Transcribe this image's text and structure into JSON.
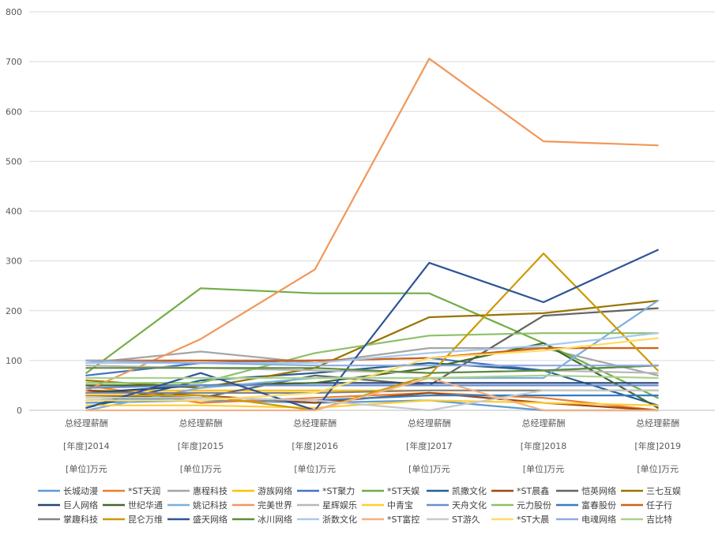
{
  "chart_data": {
    "type": "line",
    "title": "",
    "xlabel": "",
    "ylabel": "",
    "ylim": [
      0,
      800
    ],
    "yticks": [
      0,
      100,
      200,
      300,
      400,
      500,
      600,
      700,
      800
    ],
    "grid": true,
    "legend_position": "bottom",
    "categories": [
      {
        "line1": "总经理薪酬",
        "line2": "[年度]2014",
        "line3": "[单位]万元"
      },
      {
        "line1": "总经理薪酬",
        "line2": "[年度]2015",
        "line3": "[单位]万元"
      },
      {
        "line1": "总经理薪酬",
        "line2": "[年度]2016",
        "line3": "[单位]万元"
      },
      {
        "line1": "总经理薪酬",
        "line2": "[年度]2017",
        "line3": "[单位]万元"
      },
      {
        "line1": "总经理薪酬",
        "line2": "[年度]2018",
        "line3": "[单位]万元"
      },
      {
        "line1": "总经理薪酬",
        "line2": "[年度]2019",
        "line3": "[单位]万元"
      }
    ],
    "series": [
      {
        "name": "长城动漫",
        "color": "#5b9bd5",
        "values": [
          15,
          20,
          15,
          20,
          0,
          0
        ]
      },
      {
        "name": "*ST天润",
        "color": "#ed7d31",
        "values": [
          50,
          15,
          25,
          35,
          25,
          0
        ]
      },
      {
        "name": "惠程科技",
        "color": "#a5a5a5",
        "values": [
          95,
          118,
          95,
          125,
          125,
          70
        ]
      },
      {
        "name": "游族网络",
        "color": "#ffc000",
        "values": [
          40,
          40,
          40,
          40,
          40,
          40
        ]
      },
      {
        "name": "*ST聚力",
        "color": "#4472c4",
        "values": [
          70,
          95,
          100,
          105,
          80,
          90
        ]
      },
      {
        "name": "*ST天娱",
        "color": "#70ad47",
        "values": [
          75,
          245,
          235,
          235,
          135,
          25
        ]
      },
      {
        "name": "凯撒文化",
        "color": "#255e91",
        "values": [
          5,
          60,
          75,
          95,
          80,
          10
        ]
      },
      {
        "name": "*ST晨鑫",
        "color": "#9e480e",
        "values": [
          40,
          30,
          15,
          35,
          15,
          0
        ]
      },
      {
        "name": "恺英网络",
        "color": "#636363",
        "values": [
          30,
          25,
          70,
          50,
          190,
          205
        ]
      },
      {
        "name": "三七互娱",
        "color": "#997300",
        "values": [
          60,
          45,
          85,
          187,
          195,
          220
        ]
      },
      {
        "name": "巨人网络",
        "color": "#264478",
        "values": [
          35,
          50,
          55,
          55,
          55,
          55
        ]
      },
      {
        "name": "世纪华通",
        "color": "#43682b",
        "values": [
          50,
          50,
          55,
          85,
          135,
          5
        ]
      },
      {
        "name": "姚记科技",
        "color": "#7cafdd",
        "values": [
          0,
          45,
          65,
          65,
          65,
          220
        ]
      },
      {
        "name": "完美世界",
        "color": "#f1975a",
        "values": [
          40,
          143,
          283,
          706,
          540,
          532
        ]
      },
      {
        "name": "星辉娱乐",
        "color": "#b7b7b7",
        "values": [
          90,
          85,
          80,
          75,
          80,
          75
        ]
      },
      {
        "name": "中青宝",
        "color": "#ffcd33",
        "values": [
          10,
          10,
          5,
          20,
          15,
          10
        ]
      },
      {
        "name": "天舟文化",
        "color": "#698ed0",
        "values": [
          45,
          50,
          50,
          50,
          50,
          50
        ]
      },
      {
        "name": "元力股份",
        "color": "#8cc168",
        "values": [
          55,
          55,
          115,
          150,
          155,
          155
        ]
      },
      {
        "name": "富春股份",
        "color": "#327dc2",
        "values": [
          20,
          25,
          20,
          30,
          30,
          30
        ]
      },
      {
        "name": "任子行",
        "color": "#d26012",
        "values": [
          100,
          100,
          100,
          105,
          125,
          125
        ]
      },
      {
        "name": "掌趣科技",
        "color": "#848484",
        "values": [
          35,
          35,
          35,
          40,
          40,
          40
        ]
      },
      {
        "name": "昆仑万维",
        "color": "#cc9a00",
        "values": [
          30,
          30,
          0,
          70,
          315,
          80
        ]
      },
      {
        "name": "盛天网络",
        "color": "#2e5596",
        "values": [
          5,
          75,
          0,
          296,
          217,
          322
        ]
      },
      {
        "name": "冰川网络",
        "color": "#5e8c3e",
        "values": [
          85,
          85,
          85,
          75,
          80,
          90
        ]
      },
      {
        "name": "浙数文化",
        "color": "#a9c9e9",
        "values": [
          95,
          95,
          95,
          115,
          130,
          155
        ]
      },
      {
        "name": "*ST富控",
        "color": "#f4b083",
        "values": [
          0,
          0,
          0,
          65,
          0,
          0
        ]
      },
      {
        "name": "ST游久",
        "color": "#c9c9c9",
        "values": [
          25,
          25,
          20,
          0,
          40,
          40
        ]
      },
      {
        "name": "*ST大晨",
        "color": "#ffdc66",
        "values": [
          20,
          20,
          35,
          105,
          120,
          145
        ]
      },
      {
        "name": "电魂网络",
        "color": "#8faadc",
        "values": [
          100,
          95,
          90,
          90,
          90,
          90
        ]
      },
      {
        "name": "吉比特",
        "color": "#a9d18e",
        "values": [
          65,
          65,
          65,
          65,
          70,
          65
        ]
      }
    ]
  }
}
